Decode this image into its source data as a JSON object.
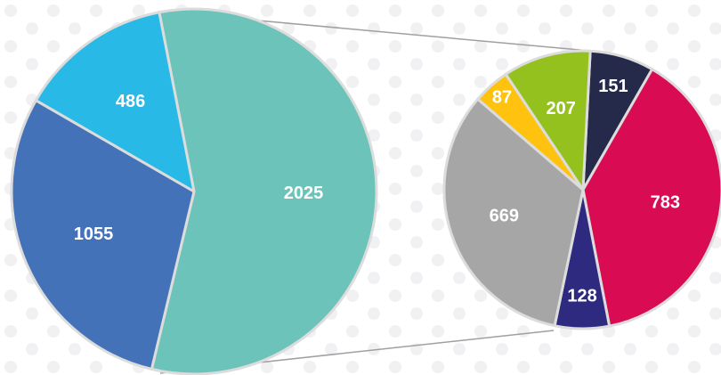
{
  "chart_data": [
    {
      "type": "pie",
      "values": [
        2025,
        1055,
        486
      ],
      "colors": [
        "#6cc3b9",
        "#4472b8",
        "#29b9e6"
      ]
    },
    {
      "type": "pie",
      "values": [
        151,
        783,
        128,
        669,
        87,
        207
      ],
      "colors": [
        "#262a4a",
        "#d90b52",
        "#2e2a80",
        "#a6a6a6",
        "#ffc20e",
        "#95c11f"
      ]
    }
  ]
}
